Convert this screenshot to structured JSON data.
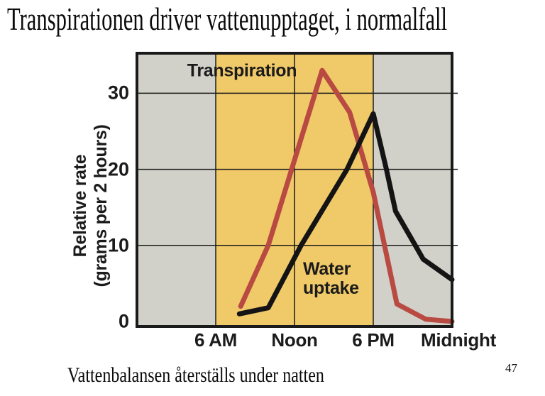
{
  "slide": {
    "title": "Transpirationen driver vattenupptaget, i normalfall",
    "caption": "Vattenbalansen återställs under natten",
    "page_number": "47"
  },
  "chart_data": {
    "type": "line",
    "title": "",
    "xlabel": "",
    "ylabel": "Relative rate (grams per 2 hours)",
    "ylabel_lines": [
      "Relative rate",
      "(grams per 2 hours)"
    ],
    "x_unit": "time of day (hours, 0 = midnight)",
    "xlim": [
      0,
      24
    ],
    "ylim": [
      0,
      35.3
    ],
    "grid_on": true,
    "grid_color": "#1a1a1a",
    "border_color": "#1a1a1a",
    "x_ticks": [
      {
        "t": 6,
        "label": "6 AM"
      },
      {
        "t": 12,
        "label": "Noon"
      },
      {
        "t": 18,
        "label": "6 PM"
      },
      {
        "t": 24,
        "label": "Midnight"
      }
    ],
    "y_ticks": [
      {
        "v": 0,
        "label": "0"
      },
      {
        "v": 10,
        "label": "10"
      },
      {
        "v": 20,
        "label": "20"
      },
      {
        "v": 30,
        "label": "30"
      }
    ],
    "grid": {
      "vertical_hours": [
        6,
        12,
        18
      ],
      "horizontal_values": [
        10,
        20,
        30
      ]
    },
    "bands": [
      {
        "name": "night-before-dawn",
        "from": 0,
        "to": 6,
        "color": "#D1D1C9"
      },
      {
        "name": "daylight",
        "from": 6,
        "to": 18,
        "color": "#F0C969"
      },
      {
        "name": "night-after-dusk",
        "from": 18,
        "to": 24,
        "color": "#D1D1C9"
      }
    ],
    "series": [
      {
        "name": "Transpiration",
        "color": "#B84A42",
        "points": [
          [
            7.9,
            2
          ],
          [
            10,
            10
          ],
          [
            14.1,
            33
          ],
          [
            16.2,
            27.5
          ],
          [
            18,
            17
          ],
          [
            19.8,
            2.3
          ],
          [
            22,
            0.3
          ],
          [
            24,
            0
          ]
        ]
      },
      {
        "name": "Water uptake",
        "name_lines": [
          "Water",
          "uptake"
        ],
        "color": "#141414",
        "points": [
          [
            7.8,
            1
          ],
          [
            10,
            1.8
          ],
          [
            12.5,
            10
          ],
          [
            16,
            20
          ],
          [
            18,
            27.3
          ],
          [
            19,
            20
          ],
          [
            19.7,
            14.5
          ],
          [
            21.2,
            10
          ],
          [
            21.8,
            8.2
          ],
          [
            24,
            5.5
          ]
        ]
      }
    ]
  }
}
